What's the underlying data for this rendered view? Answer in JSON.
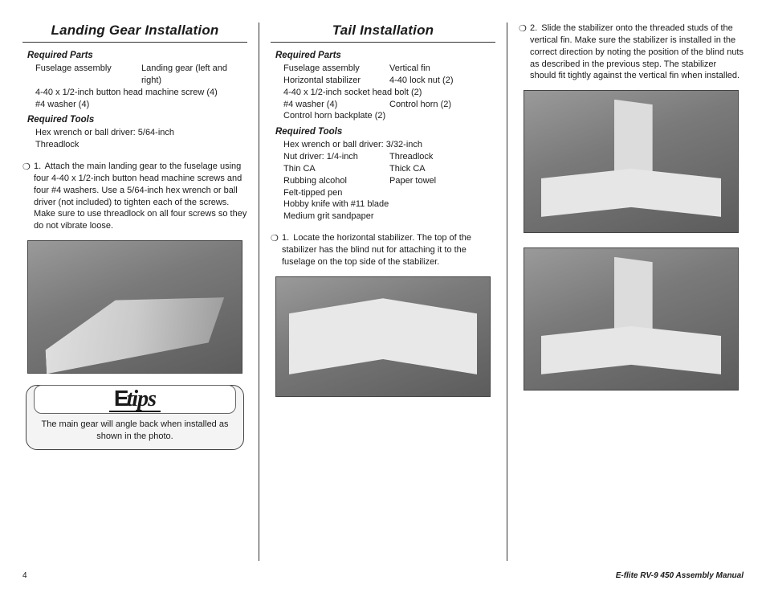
{
  "page_number": "4",
  "footer_title": "E-flite RV-9 450 Assembly Manual",
  "col1": {
    "title": "Landing Gear Installation",
    "required_parts_label": "Required Parts",
    "parts": [
      [
        "Fuselage assembly",
        "Landing gear (left and right)"
      ],
      [
        "4-40 x 1/2-inch button head machine screw (4)",
        ""
      ],
      [
        "#4 washer (4)",
        ""
      ]
    ],
    "required_tools_label": "Required Tools",
    "tools": [
      "Hex wrench or ball driver: 5/64-inch",
      "Threadlock"
    ],
    "step1_num": "1.",
    "step1_text": "Attach the main landing gear to the fuselage using four 4-40 x 1/2-inch button head machine screws and four #4 washers. Use a 5/64-inch hex wrench or ball driver (not included) to tighten each of the screws. Make sure to use threadlock on all four screws so they do not vibrate loose.",
    "tips_logo": "tips",
    "tips_text": "The main gear will angle back when installed as shown in the photo."
  },
  "col2": {
    "title": "Tail Installation",
    "required_parts_label": "Required Parts",
    "parts": [
      [
        "Fuselage assembly",
        "Vertical fin"
      ],
      [
        "Horizontal stabilizer",
        "4-40 lock nut (2)"
      ],
      [
        "4-40 x 1/2-inch socket head bolt (2)",
        ""
      ],
      [
        "#4 washer (4)",
        "Control horn (2)"
      ],
      [
        "Control horn backplate (2)",
        ""
      ]
    ],
    "required_tools_label": "Required Tools",
    "tools_rows": [
      [
        "Hex wrench or ball driver: 3/32-inch",
        ""
      ],
      [
        "Nut driver: 1/4-inch",
        "Threadlock"
      ],
      [
        "Thin CA",
        "Thick CA"
      ],
      [
        "Rubbing alcohol",
        "Paper towel"
      ],
      [
        "Felt-tipped pen",
        ""
      ],
      [
        "Hobby knife with #11 blade",
        ""
      ],
      [
        "Medium grit sandpaper",
        ""
      ]
    ],
    "step1_num": "1.",
    "step1_text": "Locate the horizontal stabilizer. The top of the stabilizer has the blind nut for attaching it to the fuselage on the top side of the stabilizer."
  },
  "col3": {
    "step2_num": "2.",
    "step2_text": "Slide the stabilizer onto the threaded studs of the vertical fin. Make sure the stabilizer is installed in the correct direction by noting the position of the blind nuts as described in the previous step. The stabilizer should fit tightly against the vertical fin when installed."
  },
  "colors": {
    "text": "#1a1a1a",
    "rule": "#333333",
    "photo_bg": "#7a7a7a",
    "tips_bg": "#f4f4f4"
  }
}
